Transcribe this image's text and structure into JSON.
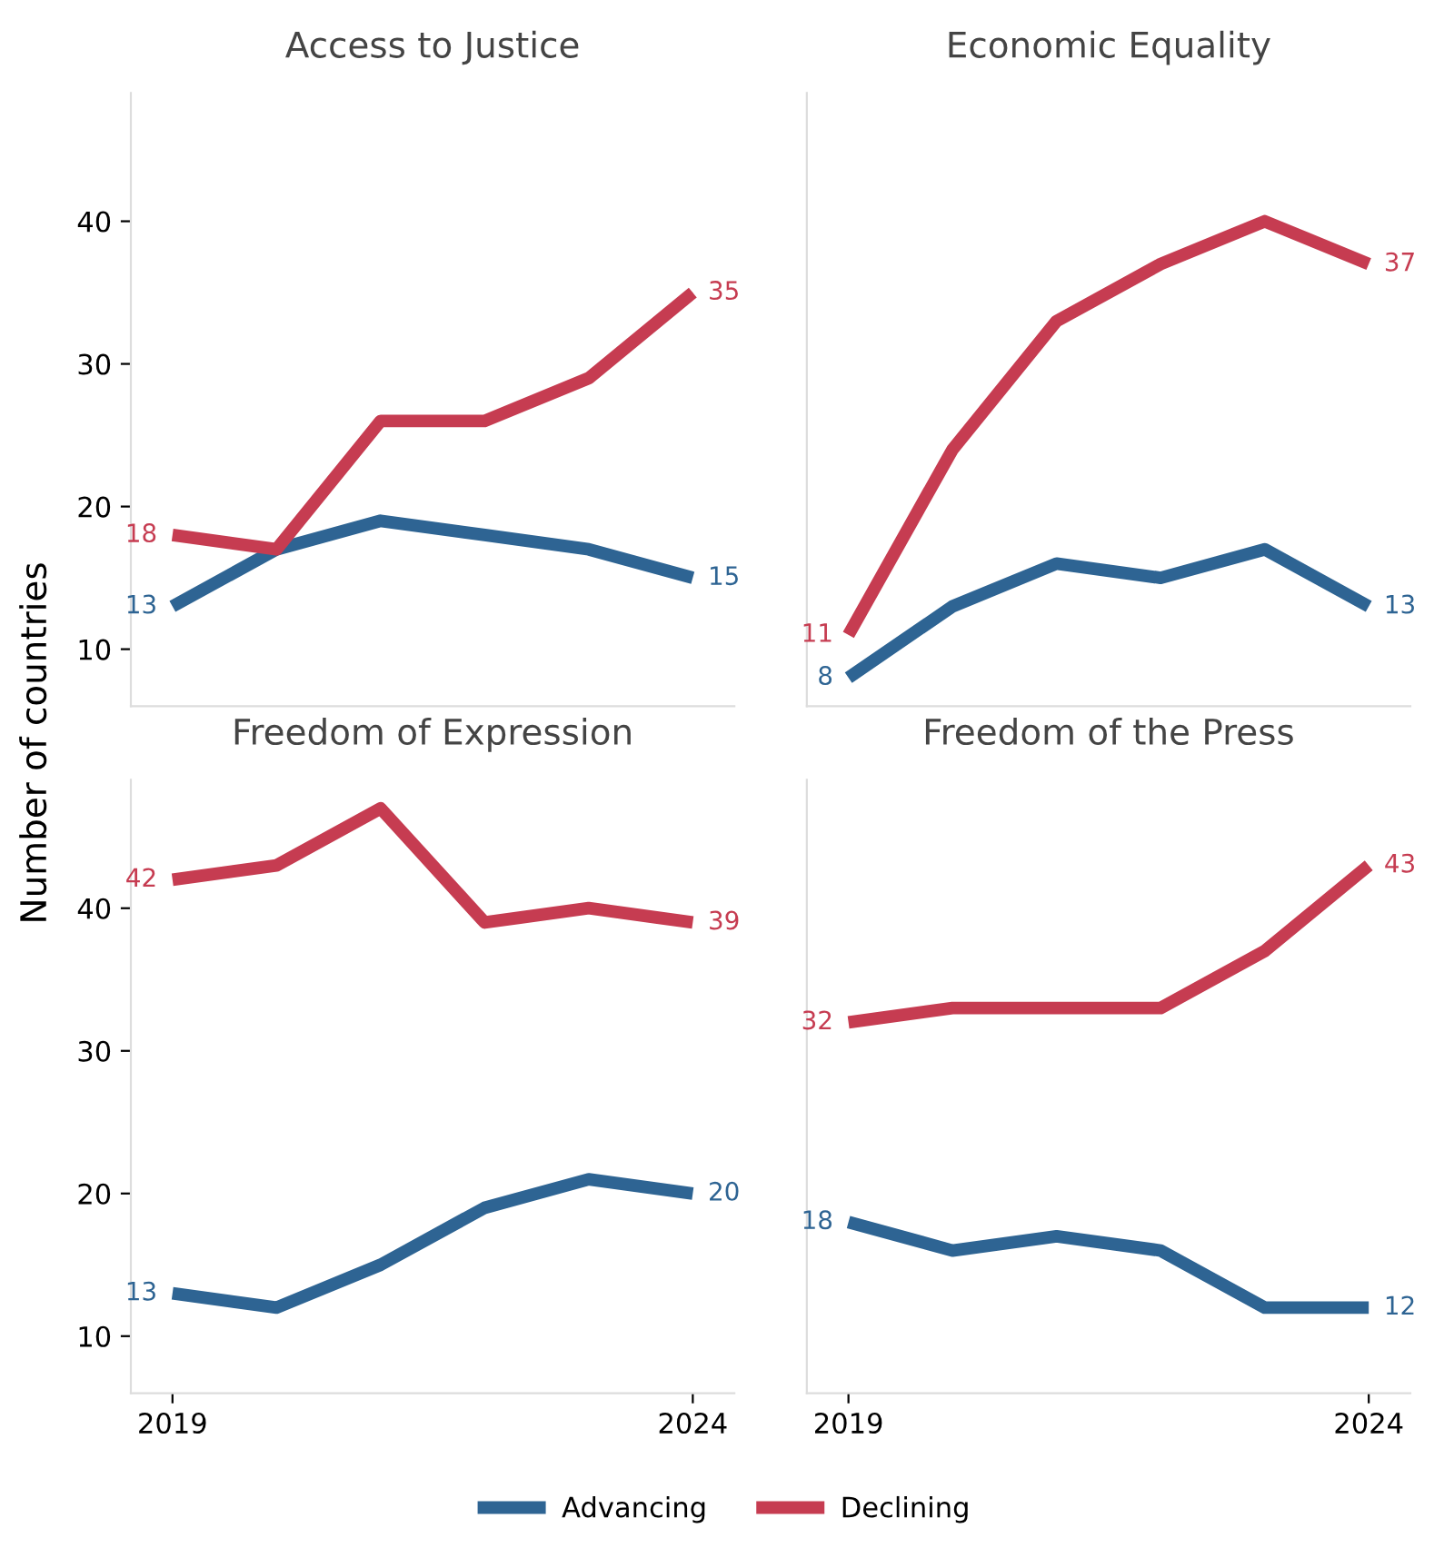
{
  "chart_data": [
    {
      "type": "line",
      "title": "Access to Justice",
      "ylabel": "Number of countries",
      "x": [
        2019,
        2020,
        2021,
        2022,
        2023,
        2024
      ],
      "xlim": [
        2018.6,
        2024.4
      ],
      "xticks": [
        2019,
        2024
      ],
      "ylim": [
        6,
        49
      ],
      "yticks": [
        10,
        20,
        30,
        40
      ],
      "tick_labels": "y",
      "grid": false,
      "legend": "bottom",
      "series": [
        {
          "name": "Advancing",
          "color": "#2e6493",
          "values": [
            13,
            17,
            19,
            18,
            17,
            15
          ],
          "value_labels": [
            "13",
            null,
            null,
            null,
            null,
            "15"
          ]
        },
        {
          "name": "Declining",
          "color": "#c63c51",
          "values": [
            18,
            17,
            26,
            26,
            29,
            35
          ],
          "value_labels": [
            "18",
            null,
            null,
            null,
            null,
            "35"
          ]
        }
      ]
    },
    {
      "type": "line",
      "title": "Economic Equality",
      "x": [
        2019,
        2020,
        2021,
        2022,
        2023,
        2024
      ],
      "xlim": [
        2018.6,
        2024.4
      ],
      "xticks": [
        2019,
        2024
      ],
      "ylim": [
        6,
        49
      ],
      "yticks": [
        10,
        20,
        30,
        40
      ],
      "tick_labels": false,
      "grid": false,
      "legend": "bottom",
      "series": [
        {
          "name": "Advancing",
          "color": "#2e6493",
          "values": [
            8,
            13,
            16,
            15,
            17,
            13
          ],
          "value_labels": [
            "8",
            null,
            null,
            null,
            null,
            "13"
          ]
        },
        {
          "name": "Declining",
          "color": "#c63c51",
          "values": [
            11,
            24,
            33,
            37,
            40,
            37
          ],
          "value_labels": [
            "11",
            null,
            null,
            null,
            null,
            "37"
          ]
        }
      ]
    },
    {
      "type": "line",
      "title": "Freedom of Expression",
      "x": [
        2019,
        2020,
        2021,
        2022,
        2023,
        2024
      ],
      "xlim": [
        2018.6,
        2024.4
      ],
      "xticks": [
        2019,
        2024
      ],
      "ylim": [
        6,
        49
      ],
      "yticks": [
        10,
        20,
        30,
        40
      ],
      "grid": false,
      "legend": "bottom",
      "series": [
        {
          "name": "Advancing",
          "color": "#2e6493",
          "values": [
            13,
            12,
            15,
            19,
            21,
            20
          ],
          "value_labels": [
            "13",
            null,
            null,
            null,
            null,
            "20"
          ]
        },
        {
          "name": "Declining",
          "color": "#c63c51",
          "values": [
            42,
            43,
            47,
            39,
            40,
            39
          ],
          "value_labels": [
            "42",
            null,
            null,
            null,
            null,
            "39"
          ]
        }
      ]
    },
    {
      "type": "line",
      "title": "Freedom of the Press",
      "x": [
        2019,
        2020,
        2021,
        2022,
        2023,
        2024
      ],
      "xlim": [
        2018.6,
        2024.4
      ],
      "xticks": [
        2019,
        2024
      ],
      "ylim": [
        6,
        49
      ],
      "yticks": [
        10,
        20,
        30,
        40
      ],
      "tick_labels": "x",
      "grid": false,
      "legend": "bottom",
      "series": [
        {
          "name": "Advancing",
          "color": "#2e6493",
          "values": [
            18,
            16,
            17,
            16,
            12,
            12
          ],
          "value_labels": [
            "18",
            null,
            null,
            null,
            null,
            "12"
          ]
        },
        {
          "name": "Declining",
          "color": "#c63c51",
          "values": [
            32,
            33,
            33,
            33,
            37,
            43
          ],
          "value_labels": [
            "32",
            null,
            null,
            null,
            null,
            "43"
          ]
        }
      ]
    }
  ]
}
